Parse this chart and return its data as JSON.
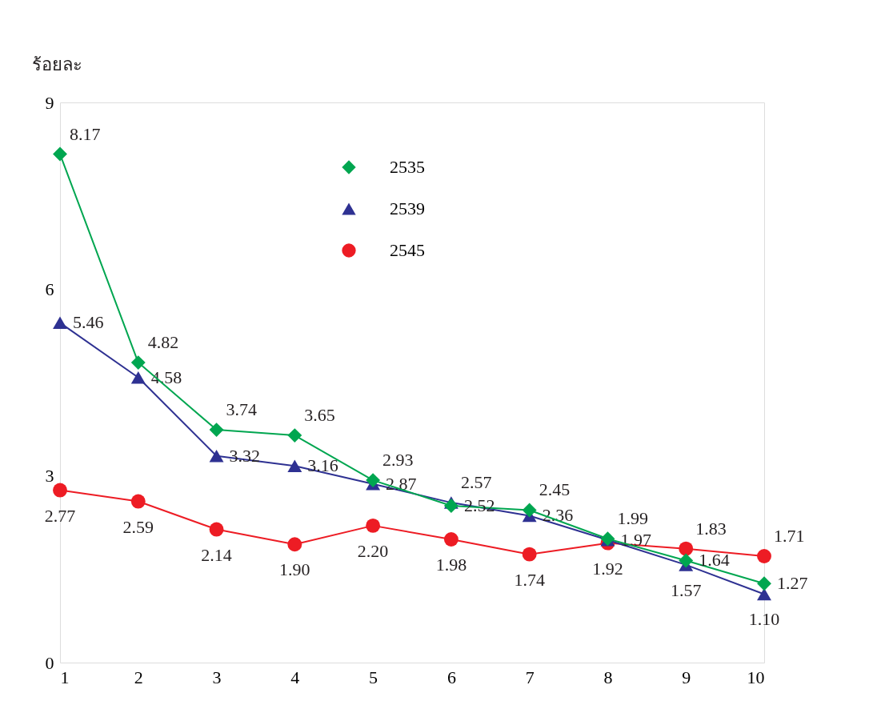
{
  "chart_data": {
    "type": "line",
    "ylabel": "ร้อยละ",
    "x": [
      1,
      2,
      3,
      4,
      5,
      6,
      7,
      8,
      9,
      10
    ],
    "xlim": [
      1,
      10
    ],
    "xticks": [
      1,
      2,
      3,
      4,
      5,
      6,
      7,
      8,
      9,
      10
    ],
    "ylim": [
      0,
      9
    ],
    "yticks": [
      0,
      3,
      6,
      9
    ],
    "grid": false,
    "legend": "top",
    "series": [
      {
        "name": "2535",
        "color": "#00a650",
        "marker": "diamond",
        "values": [
          8.17,
          4.82,
          3.74,
          3.65,
          2.93,
          2.52,
          2.45,
          1.99,
          1.64,
          1.27
        ],
        "value_labels": [
          "8.17",
          "4.82",
          "3.74",
          "3.65",
          "2.93",
          "2.52",
          "2.45",
          "1.99",
          "1.64",
          "1.27"
        ]
      },
      {
        "name": "2539",
        "color": "#2e3192",
        "marker": "triangle",
        "values": [
          5.46,
          4.58,
          3.32,
          3.16,
          2.87,
          2.57,
          2.36,
          1.97,
          1.57,
          1.1
        ],
        "value_labels": [
          "5.46",
          "4.58",
          "3.32",
          "3.16",
          "2.87",
          "2.57",
          "2.36",
          "1.97",
          "1.57",
          "1.10"
        ]
      },
      {
        "name": "2545",
        "color": "#ed1c24",
        "marker": "circle",
        "values": [
          2.77,
          2.59,
          2.14,
          1.9,
          2.2,
          1.98,
          1.74,
          1.92,
          1.83,
          1.71
        ],
        "value_labels": [
          "2.77",
          "2.59",
          "2.14",
          "1.90",
          "2.20",
          "1.98",
          "1.74",
          "1.92",
          "1.83",
          "1.71"
        ]
      }
    ]
  }
}
